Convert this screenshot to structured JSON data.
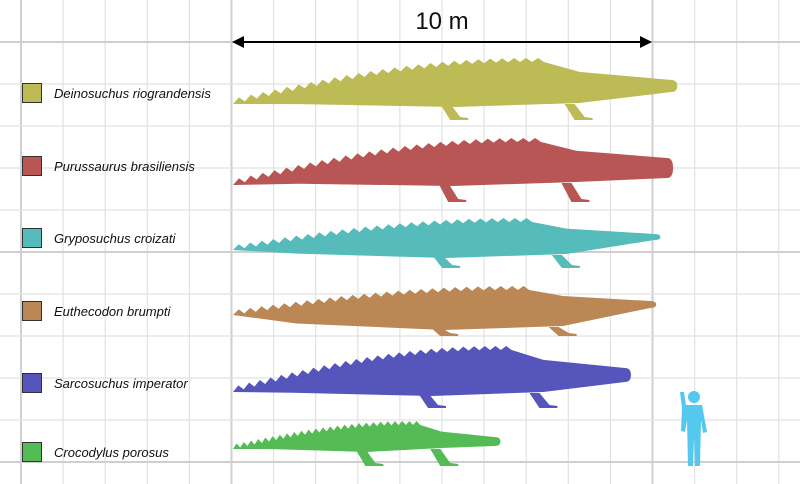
{
  "scale": {
    "label": "10 m",
    "meters": 10
  },
  "species": [
    {
      "name": "Deinosuchus riograndensis",
      "color": "#bcbb55",
      "length_m": 10.6
    },
    {
      "name": "Purussaurus brasiliensis",
      "color": "#b85555",
      "length_m": 10.5
    },
    {
      "name": "Gryposuchus croizati",
      "color": "#55bbbb",
      "length_m": 10.2
    },
    {
      "name": "Euthecodon brumpti",
      "color": "#bb8855",
      "length_m": 10.1
    },
    {
      "name": "Sarcosuchus imperator",
      "color": "#5555bb",
      "length_m": 9.5
    },
    {
      "name": "Crocodylus porosus",
      "color": "#55bb55",
      "length_m": 6.4
    }
  ],
  "human": {
    "color": "#55c8ee"
  },
  "grid": {
    "color": "#dddddd",
    "spacing_m": 1
  }
}
